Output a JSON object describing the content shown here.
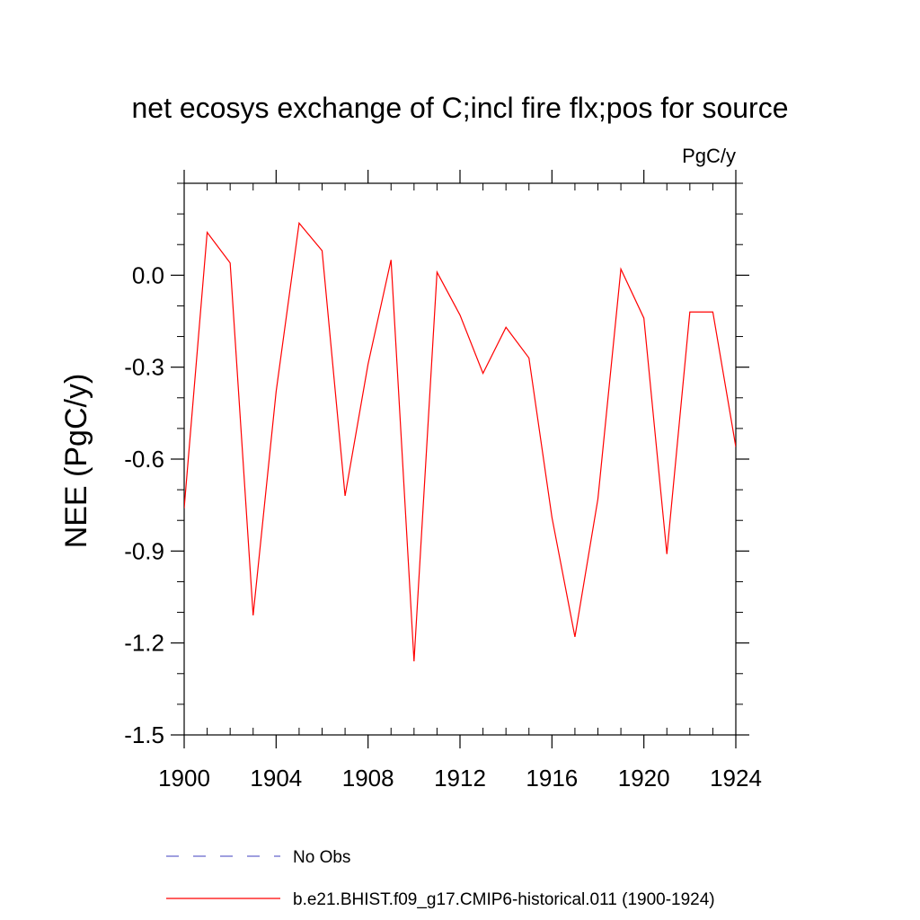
{
  "chart_data": {
    "type": "line",
    "title": "net ecosys exchange of C;incl fire flx;pos for source",
    "units": "PgC/y",
    "ylabel": "NEE  (PgC/y)",
    "xlabel": "",
    "xlim": [
      1900,
      1924
    ],
    "ylim": [
      -1.5,
      0.3
    ],
    "x_ticks": [
      1900,
      1904,
      1908,
      1912,
      1916,
      1920,
      1924
    ],
    "x_tick_labels": [
      "1900",
      "1904",
      "1908",
      "1912",
      "1916",
      "1920",
      "1924"
    ],
    "y_ticks": [
      -1.5,
      -1.2,
      -0.9,
      -0.6,
      -0.3,
      0.0
    ],
    "y_tick_labels": [
      "-1.5",
      "-1.2",
      "-0.9",
      "-0.6",
      "-0.3",
      "0.0"
    ],
    "x_minor_step": 1,
    "y_minor_step": 0.1,
    "grid": false,
    "legend_position": "bottom",
    "series": [
      {
        "name": "b.e21.BHIST.f09_g17.CMIP6-historical.011 (1900-1924)",
        "color": "#ff0000",
        "dash": "solid",
        "x": [
          1900,
          1901,
          1902,
          1903,
          1904,
          1905,
          1906,
          1907,
          1908,
          1909,
          1910,
          1911,
          1912,
          1913,
          1914,
          1915,
          1916,
          1917,
          1918,
          1919,
          1920,
          1921,
          1922,
          1923,
          1924
        ],
        "values": [
          -0.76,
          0.14,
          0.04,
          -1.11,
          -0.38,
          0.17,
          0.08,
          -0.72,
          -0.29,
          0.05,
          -1.26,
          0.01,
          -0.13,
          -0.32,
          -0.17,
          -0.27,
          -0.79,
          -1.18,
          -0.73,
          0.02,
          -0.14,
          -0.91,
          -0.12,
          -0.12,
          -0.56
        ]
      },
      {
        "name": "No Obs",
        "color": "#6666cc",
        "dash": "dashed",
        "x": [],
        "values": []
      }
    ]
  }
}
